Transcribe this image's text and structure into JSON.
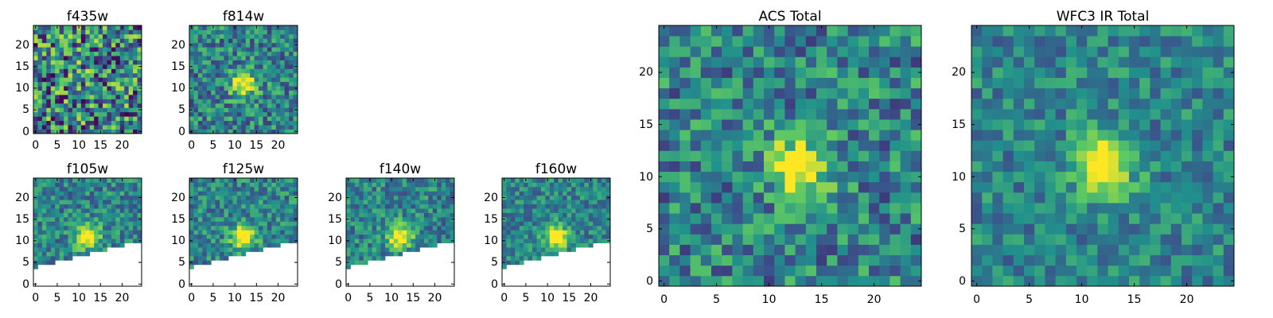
{
  "figure": {
    "colormap": [
      "#440154",
      "#3b528b",
      "#21918c",
      "#5ec962",
      "#fde725"
    ],
    "frame_color": "#000000",
    "background": "#ffffff"
  },
  "chart_data": [
    {
      "type": "heatmap",
      "title": "f435w",
      "xlabel": "",
      "ylabel": "",
      "x_ticks": [
        "0",
        "5",
        "10",
        "15",
        "20"
      ],
      "y_ticks": [
        "0",
        "5",
        "10",
        "15",
        "20"
      ],
      "xlim": [
        0,
        25
      ],
      "ylim": [
        0,
        25
      ],
      "source_center": [
        12,
        16
      ],
      "source_strength": 0.15,
      "noise": 0.9,
      "mask_line": null,
      "seed": 11
    },
    {
      "type": "heatmap",
      "title": "f814w",
      "xlabel": "",
      "ylabel": "",
      "x_ticks": [
        "0",
        "5",
        "10",
        "15",
        "20"
      ],
      "y_ticks": [
        "0",
        "5",
        "10",
        "15",
        "20"
      ],
      "xlim": [
        0,
        25
      ],
      "ylim": [
        0,
        25
      ],
      "source_center": [
        12,
        11
      ],
      "source_strength": 1.0,
      "noise": 0.55,
      "mask_line": null,
      "seed": 23
    },
    {
      "type": "heatmap",
      "title": "f105w",
      "xlabel": "",
      "ylabel": "",
      "x_ticks": [
        "0",
        "5",
        "10",
        "15",
        "20"
      ],
      "y_ticks": [
        "0",
        "5",
        "10",
        "15",
        "20"
      ],
      "xlim": [
        0,
        25
      ],
      "ylim": [
        0,
        25
      ],
      "source_center": [
        12,
        11
      ],
      "source_strength": 1.0,
      "noise": 0.45,
      "mask_line": [
        [
          0,
          4
        ],
        [
          25,
          10
        ]
      ],
      "seed": 37
    },
    {
      "type": "heatmap",
      "title": "f125w",
      "xlabel": "",
      "ylabel": "",
      "x_ticks": [
        "0",
        "5",
        "10",
        "15",
        "20"
      ],
      "y_ticks": [
        "0",
        "5",
        "10",
        "15",
        "20"
      ],
      "xlim": [
        0,
        25
      ],
      "ylim": [
        0,
        25
      ],
      "source_center": [
        12,
        11
      ],
      "source_strength": 1.0,
      "noise": 0.45,
      "mask_line": [
        [
          0,
          4
        ],
        [
          25,
          10
        ]
      ],
      "seed": 41
    },
    {
      "type": "heatmap",
      "title": "f140w",
      "xlabel": "",
      "ylabel": "",
      "x_ticks": [
        "0",
        "5",
        "10",
        "15",
        "20"
      ],
      "y_ticks": [
        "0",
        "5",
        "10",
        "15",
        "20"
      ],
      "xlim": [
        0,
        25
      ],
      "ylim": [
        0,
        25
      ],
      "source_center": [
        12,
        11
      ],
      "source_strength": 1.0,
      "noise": 0.45,
      "mask_line": [
        [
          0,
          4
        ],
        [
          25,
          10
        ]
      ],
      "seed": 53
    },
    {
      "type": "heatmap",
      "title": "f160w",
      "xlabel": "",
      "ylabel": "",
      "x_ticks": [
        "0",
        "5",
        "10",
        "15",
        "20"
      ],
      "y_ticks": [
        "0",
        "5",
        "10",
        "15",
        "20"
      ],
      "xlim": [
        0,
        25
      ],
      "ylim": [
        0,
        25
      ],
      "source_center": [
        12,
        11
      ],
      "source_strength": 1.0,
      "noise": 0.4,
      "mask_line": [
        [
          0,
          4
        ],
        [
          25,
          10
        ]
      ],
      "seed": 67
    },
    {
      "type": "heatmap",
      "title": "ACS Total",
      "xlabel": "",
      "ylabel": "",
      "x_ticks": [
        "0",
        "5",
        "10",
        "15",
        "20"
      ],
      "y_ticks": [
        "0",
        "5",
        "10",
        "15",
        "20"
      ],
      "xlim": [
        0,
        25
      ],
      "ylim": [
        0,
        25
      ],
      "source_center": [
        13,
        11
      ],
      "source_strength": 1.0,
      "noise": 0.55,
      "mask_line": null,
      "seed": 71
    },
    {
      "type": "heatmap",
      "title": "WFC3 IR Total",
      "xlabel": "",
      "ylabel": "",
      "x_ticks": [
        "0",
        "5",
        "10",
        "15",
        "20"
      ],
      "y_ticks": [
        "0",
        "5",
        "10",
        "15",
        "20"
      ],
      "xlim": [
        0,
        25
      ],
      "ylim": [
        0,
        25
      ],
      "source_center": [
        12,
        11
      ],
      "source_strength": 1.0,
      "noise": 0.4,
      "mask_line": null,
      "seed": 89
    }
  ]
}
